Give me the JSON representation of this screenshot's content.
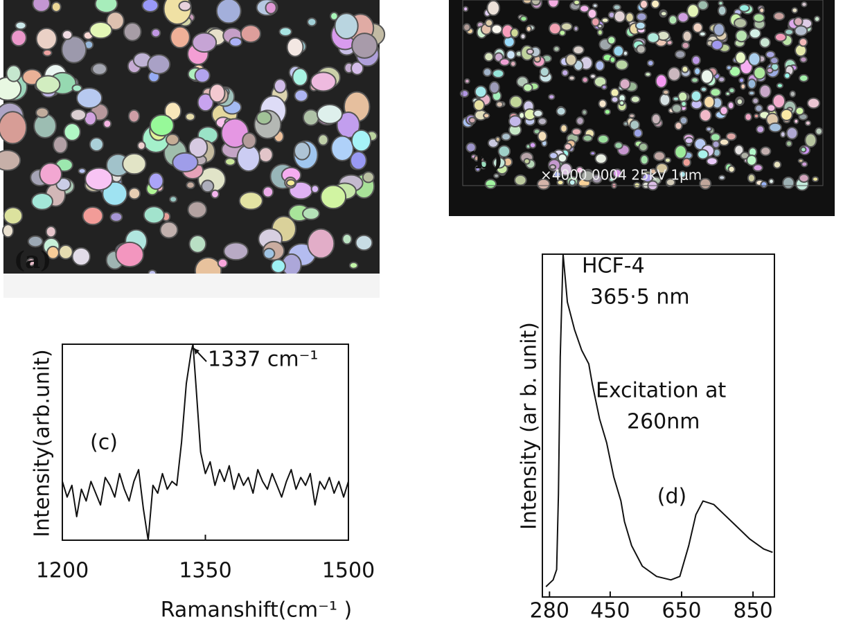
{
  "images": [
    {
      "label": "(a)"
    },
    {
      "label": "(b)",
      "caption": "×4000 0004 25kV 1μm"
    }
  ],
  "chart_data": [
    {
      "type": "line",
      "panel": "(c)",
      "x_label": "Ramanshift(cm⁻¹ )",
      "y_label": "Intensity(arb.unit)",
      "annotations": [
        "1337 cm⁻¹"
      ],
      "xlim": [
        1200,
        1500
      ],
      "xticks": [
        1200,
        1350,
        1500
      ],
      "ylim": [
        0,
        100
      ],
      "color": "#111111",
      "x": [
        1200,
        1205,
        1210,
        1215,
        1220,
        1225,
        1230,
        1235,
        1240,
        1245,
        1250,
        1255,
        1260,
        1265,
        1270,
        1275,
        1280,
        1285,
        1290,
        1295,
        1300,
        1305,
        1310,
        1315,
        1320,
        1325,
        1330,
        1335,
        1337,
        1340,
        1345,
        1350,
        1355,
        1360,
        1365,
        1370,
        1375,
        1380,
        1385,
        1390,
        1395,
        1400,
        1405,
        1410,
        1415,
        1420,
        1425,
        1430,
        1435,
        1440,
        1445,
        1450,
        1455,
        1460,
        1465,
        1470,
        1475,
        1480,
        1485,
        1490,
        1495,
        1500
      ],
      "values": [
        30,
        22,
        28,
        12,
        26,
        20,
        30,
        24,
        18,
        32,
        28,
        22,
        34,
        26,
        20,
        30,
        36,
        16,
        0,
        28,
        24,
        34,
        26,
        30,
        28,
        50,
        80,
        96,
        100,
        80,
        45,
        34,
        40,
        28,
        36,
        30,
        38,
        26,
        34,
        28,
        32,
        24,
        36,
        30,
        26,
        34,
        28,
        22,
        30,
        36,
        26,
        32,
        28,
        34,
        18,
        30,
        26,
        32,
        24,
        30,
        22,
        30
      ]
    },
    {
      "type": "line",
      "panel": "(d)",
      "y_label": "Intensity (ar b. unit)",
      "annotations": [
        "HCF-4",
        "365·5 nm",
        "Excitation at",
        "260nm"
      ],
      "xlim": [
        260,
        910
      ],
      "xticks": [
        280,
        450,
        650,
        850
      ],
      "ylim": [
        0,
        100
      ],
      "color": "#111111",
      "x": [
        270,
        280,
        290,
        300,
        305,
        310,
        318,
        330,
        350,
        370,
        390,
        400,
        420,
        440,
        460,
        480,
        490,
        510,
        540,
        580,
        620,
        645,
        670,
        690,
        710,
        740,
        770,
        800,
        840,
        880,
        905
      ],
      "values": [
        3,
        4,
        5,
        8,
        30,
        70,
        100,
        86,
        78,
        72,
        68,
        62,
        52,
        45,
        35,
        28,
        22,
        15,
        9,
        6,
        5,
        6,
        15,
        24,
        28,
        27,
        24,
        21,
        17,
        14,
        13
      ]
    }
  ]
}
